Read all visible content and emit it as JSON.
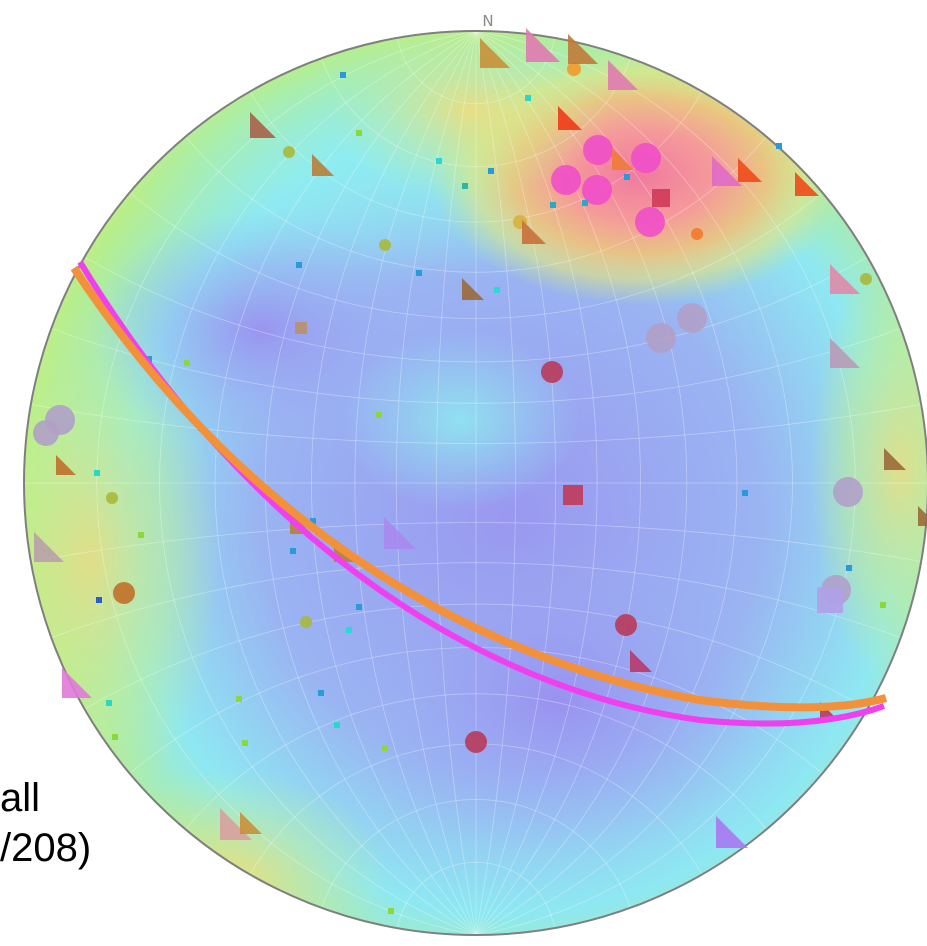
{
  "north_label": "N",
  "side_text": {
    "line1": "all",
    "line2": "/208)"
  },
  "colors": {
    "density_high": "#f07a9a",
    "density_mid_high": "#f2d77a",
    "density_mid": "#b8ee8a",
    "density_low": "#8ee8f2",
    "density_min": "#9a98f0",
    "great_circle_orange": "#f3913a",
    "great_circle_magenta": "#ef3fef",
    "outline": "#7f7f7f"
  },
  "great_circles": [
    {
      "name": "orange-plane",
      "color": "#f3913a"
    },
    {
      "name": "magenta-plane",
      "color": "#ef3fef"
    }
  ],
  "legend_symbols": [
    "circle",
    "triangle",
    "square"
  ]
}
